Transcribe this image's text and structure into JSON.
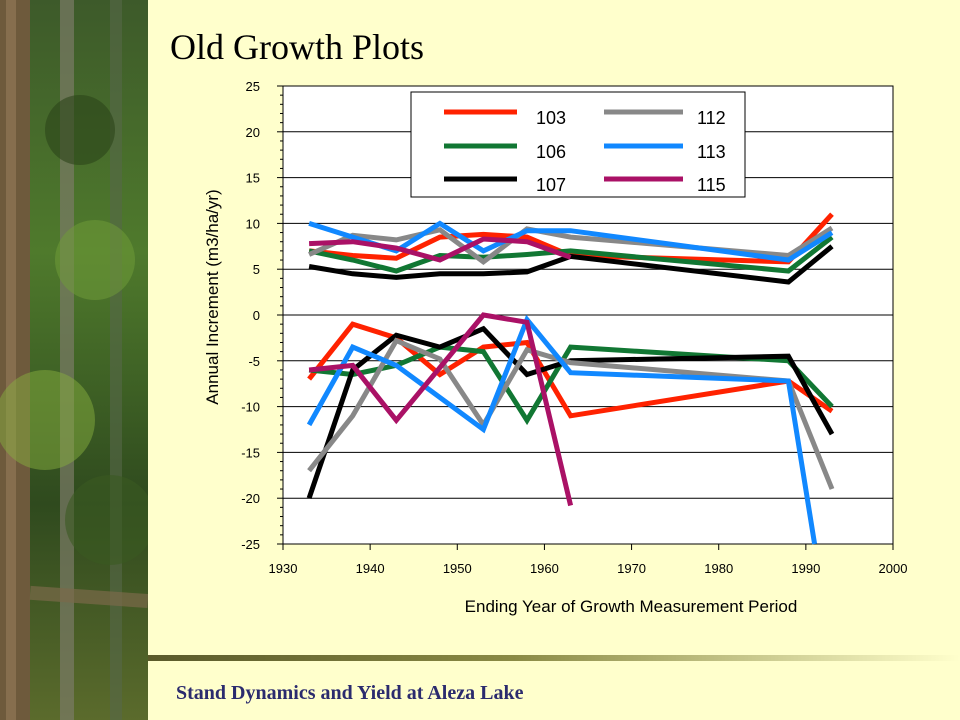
{
  "slide": {
    "title": "Old Growth Plots",
    "footer": "Stand Dynamics and Yield at Aleza Lake"
  },
  "chart_data": {
    "type": "line",
    "title": "",
    "xlabel": "Ending Year of Growth Measurement Period",
    "ylabel": "Annual Increment (m3/ha/yr)",
    "xlim": [
      1930,
      2000
    ],
    "ylim": [
      -25,
      25
    ],
    "xticks": [
      1930,
      1940,
      1950,
      1960,
      1970,
      1980,
      1990,
      2000
    ],
    "yticks": [
      25,
      20,
      15,
      10,
      5,
      0,
      -5,
      -10,
      -15,
      -20,
      -25
    ],
    "grid": "horizontal",
    "legend_position": "top-center",
    "series": [
      {
        "name": "103",
        "color": "#ff2200",
        "line": "upper",
        "x": [
          1933,
          1938,
          1943,
          1948,
          1953,
          1958,
          1963,
          1988,
          1993
        ],
        "y": [
          7,
          6.5,
          6.2,
          8.5,
          8.8,
          8.5,
          6.5,
          5.8,
          11
        ]
      },
      {
        "name": "103",
        "color": "#ff2200",
        "line": "lower",
        "x": [
          1933,
          1938,
          1943,
          1948,
          1953,
          1958,
          1963,
          1988,
          1993
        ],
        "y": [
          -7,
          -1,
          -2.5,
          -6.5,
          -3.5,
          -3,
          -11,
          -7.2,
          -10.5
        ]
      },
      {
        "name": "106",
        "color": "#117733",
        "line": "upper",
        "x": [
          1933,
          1938,
          1943,
          1948,
          1953,
          1958,
          1963,
          1988,
          1993
        ],
        "y": [
          7,
          6,
          4.8,
          6.5,
          6.3,
          6.6,
          7,
          4.8,
          8.5
        ]
      },
      {
        "name": "106",
        "color": "#117733",
        "line": "lower",
        "x": [
          1933,
          1938,
          1943,
          1948,
          1953,
          1958,
          1963,
          1988,
          1993
        ],
        "y": [
          -6,
          -6.5,
          -5.5,
          -3.5,
          -4,
          -11.5,
          -3.5,
          -5,
          -10
        ]
      },
      {
        "name": "107",
        "color": "#000000",
        "line": "upper",
        "x": [
          1933,
          1938,
          1943,
          1948,
          1953,
          1958,
          1963,
          1988,
          1993
        ],
        "y": [
          5.3,
          4.5,
          4.1,
          4.5,
          4.5,
          4.7,
          6.4,
          3.6,
          7.5
        ]
      },
      {
        "name": "107",
        "color": "#000000",
        "line": "lower",
        "x": [
          1933,
          1938,
          1943,
          1948,
          1953,
          1958,
          1963,
          1988,
          1993
        ],
        "y": [
          -20,
          -6,
          -2.2,
          -3.5,
          -1.5,
          -6.5,
          -5,
          -4.5,
          -13
        ]
      },
      {
        "name": "112",
        "color": "#888888",
        "line": "upper",
        "x": [
          1933,
          1938,
          1943,
          1948,
          1953,
          1958,
          1963,
          1988,
          1993
        ],
        "y": [
          6.6,
          8.7,
          8.2,
          9.3,
          5.8,
          9.4,
          8.5,
          6.5,
          9.5
        ]
      },
      {
        "name": "112",
        "color": "#888888",
        "line": "lower",
        "x": [
          1933,
          1938,
          1943,
          1948,
          1953,
          1958,
          1963,
          1988,
          1993
        ],
        "y": [
          -17,
          -11,
          -2.8,
          -4.8,
          -12,
          -3.8,
          -5.2,
          -7.2,
          -19
        ]
      },
      {
        "name": "113",
        "color": "#1188ff",
        "line": "upper",
        "x": [
          1933,
          1943,
          1948,
          1953,
          1958,
          1963,
          1988,
          1993
        ],
        "y": [
          10,
          7,
          10,
          7,
          9.2,
          9.2,
          6,
          9
        ]
      },
      {
        "name": "113",
        "color": "#1188ff",
        "line": "lower",
        "x": [
          1933,
          1938,
          1943,
          1953,
          1958,
          1963,
          1988,
          1991
        ],
        "y": [
          -12,
          -3.5,
          -5.5,
          -12.5,
          -0.5,
          -6.3,
          -7.2,
          -25
        ]
      },
      {
        "name": "115",
        "color": "#aa1166",
        "line": "upper",
        "x": [
          1933,
          1938,
          1943,
          1948,
          1953,
          1958,
          1963
        ],
        "y": [
          7.8,
          8,
          7.3,
          6,
          8.3,
          8,
          6.3
        ]
      },
      {
        "name": "115",
        "color": "#aa1166",
        "line": "lower",
        "x": [
          1933,
          1938,
          1943,
          1953,
          1958,
          1963
        ],
        "y": [
          -6,
          -5.5,
          -11.5,
          0,
          -0.8,
          -20.8
        ]
      }
    ],
    "legend": [
      {
        "label": "103",
        "color": "#ff2200"
      },
      {
        "label": "106",
        "color": "#117733"
      },
      {
        "label": "107",
        "color": "#000000"
      },
      {
        "label": "112",
        "color": "#888888"
      },
      {
        "label": "113",
        "color": "#1188ff"
      },
      {
        "label": "115",
        "color": "#aa1166"
      }
    ]
  }
}
